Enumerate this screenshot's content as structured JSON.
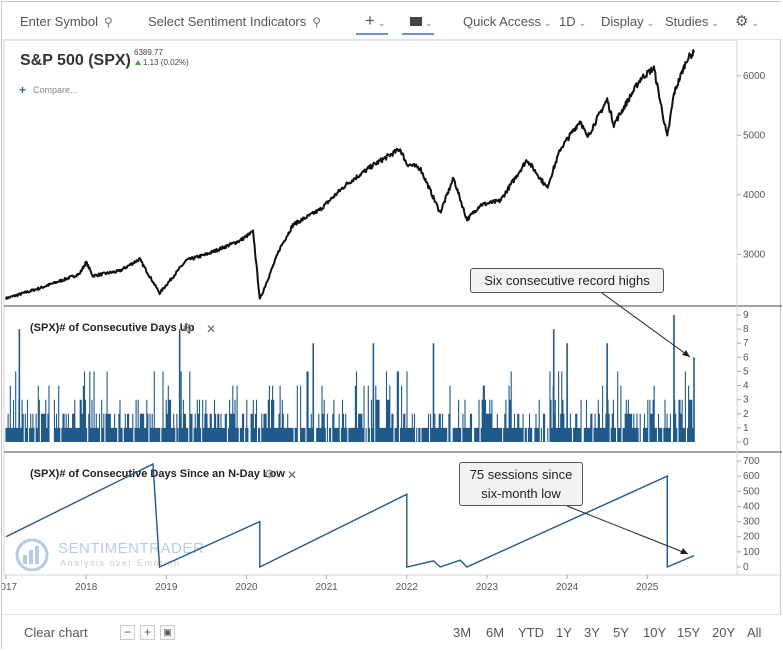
{
  "toolbar": {
    "symbol_placeholder": "Enter Symbol",
    "sentiment_placeholder": "Select Sentiment Indicators",
    "quick_access": "Quick Access",
    "interval": "1D",
    "display": "Display",
    "studies": "Studies"
  },
  "header": {
    "title": "S&P 500 (SPX)",
    "price": "6389.77",
    "change": "1.13 (0.02%)",
    "compare": "Compare..."
  },
  "colors": {
    "price_line": "#111111",
    "indicator": "#1f5a8a",
    "up_arrow": "#3aa33a"
  },
  "annotations": {
    "record_highs": "Six consecutive record highs",
    "low_line1": "75 sessions since",
    "low_line2": "six-month low"
  },
  "watermark": {
    "name": "SENTIMENTRADER",
    "tagline": "Analysis over Emotion"
  },
  "bottom": {
    "clear": "Clear chart",
    "ranges": [
      "3M",
      "6M",
      "YTD",
      "1Y",
      "3Y",
      "5Y",
      "10Y",
      "15Y",
      "20Y",
      "All"
    ]
  },
  "chart_data": [
    {
      "type": "line",
      "title": "S&P 500 (SPX)",
      "x_range": [
        "2017-01",
        "2025-08"
      ],
      "ylim": [
        2200,
        6500
      ],
      "y_ticks": [
        3000,
        4000,
        5000,
        6000
      ],
      "x_ticks": [
        "2017",
        "2018",
        "2019",
        "2020",
        "2021",
        "2022",
        "2023",
        "2024",
        "2025"
      ],
      "series": [
        {
          "x": [
            "2017-01",
            "2017-06",
            "2017-12",
            "2018-01",
            "2018-02",
            "2018-06",
            "2018-09",
            "2018-12",
            "2019-04",
            "2019-07",
            "2019-12",
            "2020-02",
            "2020-03",
            "2020-06",
            "2020-08",
            "2020-12",
            "2021-04",
            "2021-08",
            "2021-12",
            "2022-01",
            "2022-03",
            "2022-06",
            "2022-08",
            "2022-10",
            "2022-12",
            "2023-03",
            "2023-07",
            "2023-10",
            "2023-12",
            "2024-03",
            "2024-04",
            "2024-07",
            "2024-08",
            "2024-12",
            "2025-01",
            "2025-02",
            "2025-04",
            "2025-05",
            "2025-06",
            "2025-07",
            "2025-08"
          ],
          "y": [
            2260,
            2430,
            2670,
            2870,
            2640,
            2720,
            2920,
            2350,
            2900,
            3000,
            3230,
            3380,
            2240,
            3100,
            3500,
            3750,
            4180,
            4500,
            4770,
            4520,
            4450,
            3700,
            4280,
            3580,
            3830,
            3900,
            4590,
            4120,
            4770,
            5250,
            4960,
            5600,
            5180,
            5950,
            6040,
            6130,
            4960,
            5700,
            6000,
            6290,
            6389.77
          ]
        }
      ]
    },
    {
      "type": "bar",
      "title": "(SPX)# of Consecutive Days Up",
      "ylim": [
        0,
        9
      ],
      "y_ticks": [
        0,
        1,
        2,
        3,
        4,
        5,
        6,
        7,
        8,
        9
      ],
      "x_range": [
        "2017-01",
        "2025-08"
      ],
      "notable": [
        {
          "x": "2017-03",
          "y": 8
        },
        {
          "x": "2019-03",
          "y": 8
        },
        {
          "x": "2020-11",
          "y": 7
        },
        {
          "x": "2021-08",
          "y": 7
        },
        {
          "x": "2022-05",
          "y": 7
        },
        {
          "x": "2023-11",
          "y": 8
        },
        {
          "x": "2024-01",
          "y": 7
        },
        {
          "x": "2024-07",
          "y": 7
        },
        {
          "x": "2025-05",
          "y": 9
        },
        {
          "x": "2025-08",
          "y": 6
        }
      ]
    },
    {
      "type": "line",
      "title": "(SPX)# of Consecutive Days Since an N-Day Low",
      "ylim": [
        0,
        700
      ],
      "y_ticks": [
        0,
        100,
        200,
        300,
        400,
        500,
        600,
        700
      ],
      "x_range": [
        "2017-01",
        "2025-08"
      ],
      "series": [
        {
          "x": [
            "2017-01",
            "2018-11",
            "2018-12",
            "2020-03",
            "2020-03",
            "2022-01",
            "2022-01",
            "2022-05",
            "2022-06",
            "2022-09",
            "2022-10",
            "2025-04",
            "2025-04",
            "2025-08"
          ],
          "y": [
            200,
            680,
            0,
            300,
            0,
            480,
            0,
            40,
            0,
            45,
            0,
            600,
            0,
            75
          ]
        }
      ]
    }
  ]
}
